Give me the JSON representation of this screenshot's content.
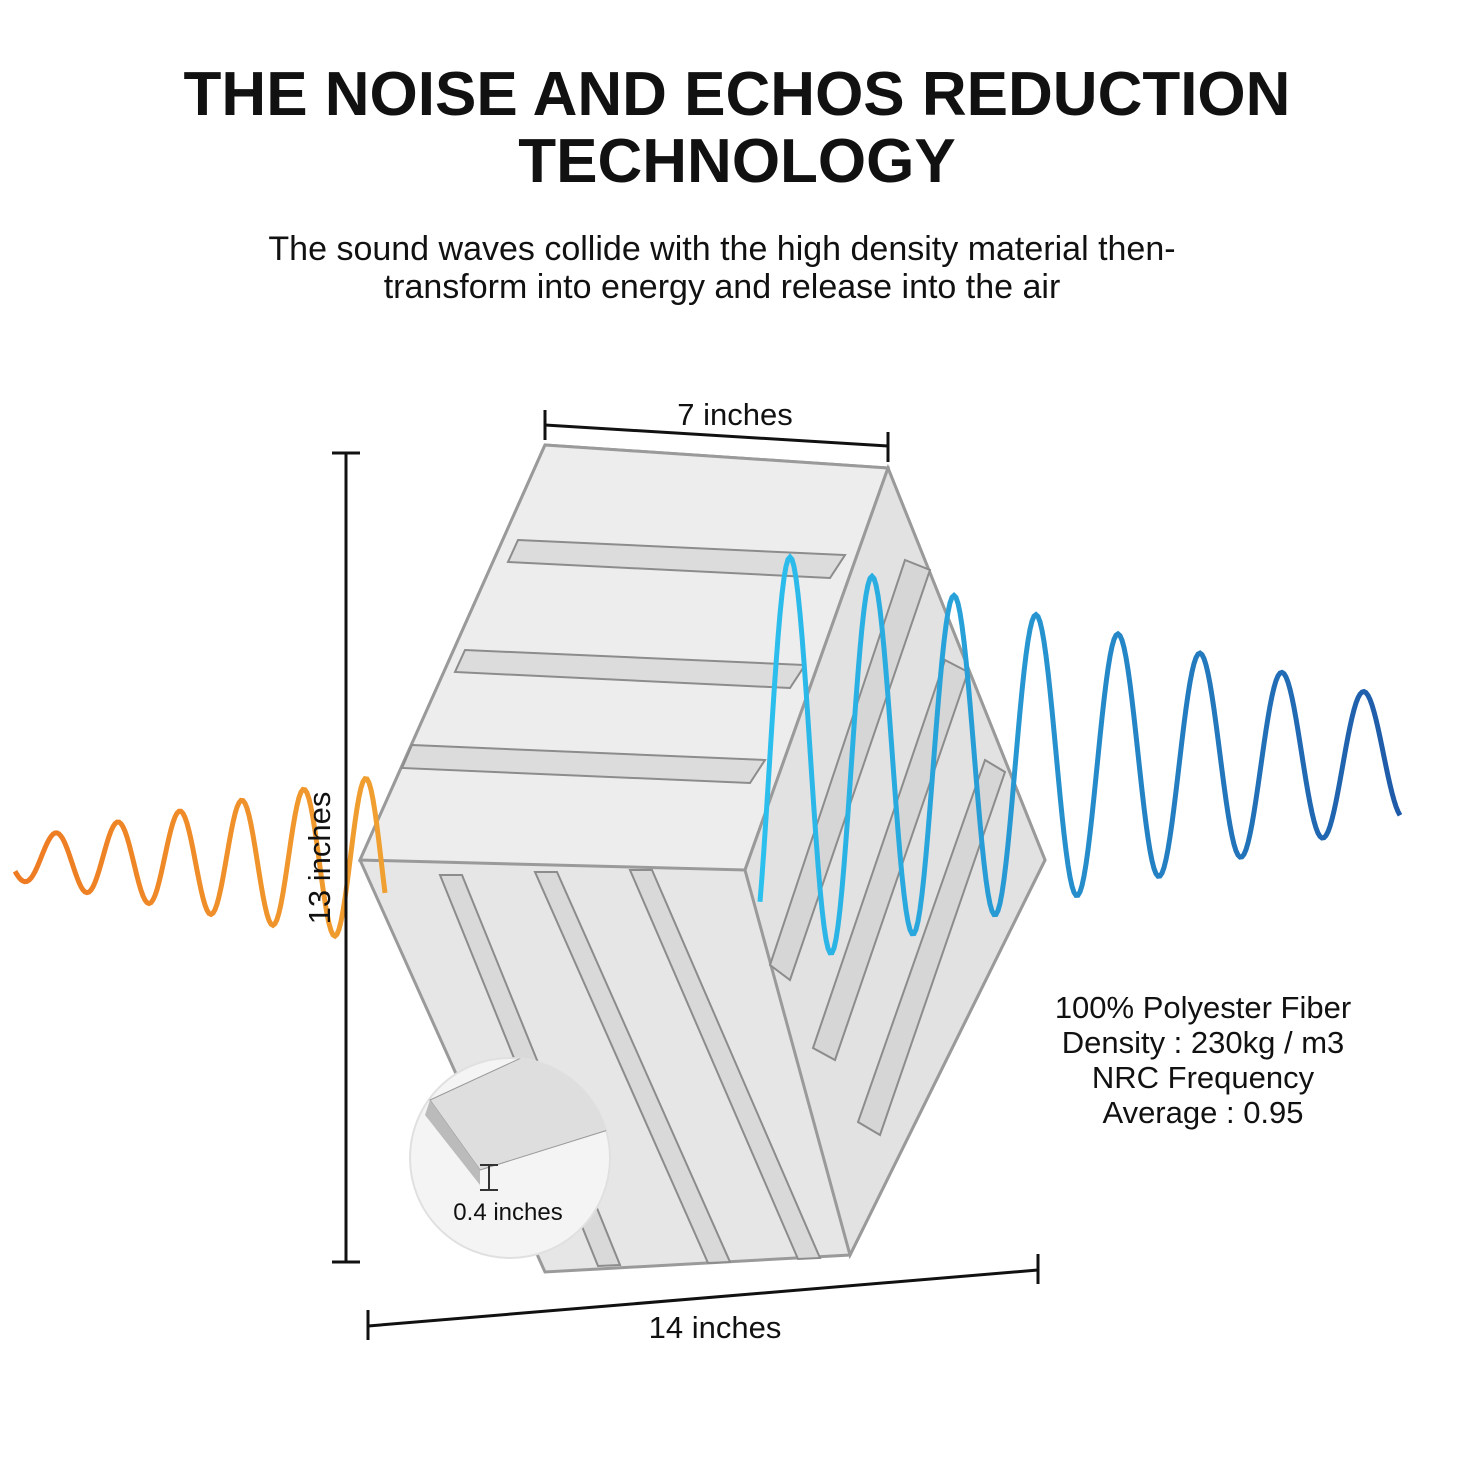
{
  "header": {
    "title": [
      "THE NOISE AND ECHOS REDUCTION",
      "TECHNOLOGY"
    ],
    "subtitle": [
      "The sound waves collide with the high density material then-",
      "transform into energy and release into the air"
    ]
  },
  "dimensions": {
    "top": "7 inches",
    "height": "13 inches",
    "bottom": "14 inches",
    "thickness": "0.4 inches"
  },
  "specs": [
    "100% Polyester Fiber",
    "Density : 230kg / m3",
    "NRC Frequency",
    "Average : 0.95"
  ]
}
